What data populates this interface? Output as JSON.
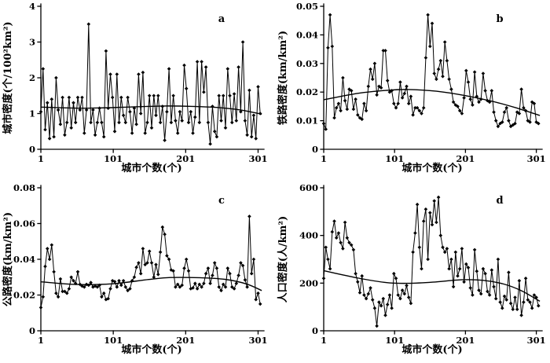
{
  "figure": {
    "background": "#ffffff",
    "line_color": "#000000",
    "marker_shape": "diamond"
  },
  "chart_data": [
    {
      "id": "a",
      "type": "line",
      "panel_label": "a",
      "xlabel": "城市个数(个)",
      "ylabel": "城市密度(个/100²km²)",
      "xlim": [
        1,
        307
      ],
      "ylim": [
        0,
        4
      ],
      "xticks": [
        1,
        101,
        201,
        301
      ],
      "yticks": [
        0,
        1,
        2,
        3,
        4
      ],
      "ytick_labels": [
        "0",
        "1",
        "2",
        "3",
        "4"
      ],
      "x_start": 1,
      "x_step": 3,
      "values": [
        1.05,
        2.25,
        0.55,
        1.3,
        0.3,
        1.4,
        0.35,
        2.0,
        1.1,
        0.7,
        1.45,
        0.4,
        0.75,
        1.45,
        0.6,
        1.3,
        0.75,
        1.45,
        1.1,
        1.45,
        0.45,
        1.1,
        3.5,
        0.75,
        1.1,
        0.4,
        0.75,
        1.15,
        0.75,
        0.35,
        2.75,
        1.15,
        2.1,
        1.45,
        0.5,
        2.1,
        0.75,
        1.45,
        0.95,
        0.75,
        1.45,
        1.05,
        0.45,
        1.15,
        0.7,
        2.1,
        1.0,
        2.15,
        0.45,
        0.75,
        1.5,
        0.6,
        1.5,
        0.95,
        1.5,
        0.75,
        1.2,
        0.25,
        1.05,
        2.25,
        0.75,
        1.5,
        0.8,
        0.45,
        1.05,
        0.8,
        2.35,
        1.7,
        0.75,
        1.05,
        0.45,
        0.9,
        2.45,
        0.75,
        2.45,
        1.6,
        2.3,
        0.75,
        0.15,
        1.2,
        0.5,
        0.35,
        1.5,
        0.8,
        1.5,
        0.6,
        2.25,
        1.5,
        0.75,
        1.55,
        0.8,
        2.3,
        1.05,
        3.0,
        0.8,
        0.4,
        1.65,
        0.35,
        0.95,
        0.3,
        1.75,
        1.0
      ],
      "trend": [
        [
          1,
          1.18
        ],
        [
          60,
          1.15
        ],
        [
          120,
          1.18
        ],
        [
          170,
          1.21
        ],
        [
          210,
          1.2
        ],
        [
          250,
          1.16
        ],
        [
          280,
          1.09
        ],
        [
          306,
          0.98
        ]
      ]
    },
    {
      "id": "b",
      "type": "line",
      "panel_label": "b",
      "xlabel": "城市个数(个)",
      "ylabel": "铁路密度(km/km²)",
      "xlim": [
        1,
        307
      ],
      "ylim": [
        0,
        0.05
      ],
      "xticks": [
        1,
        101,
        201,
        301
      ],
      "yticks": [
        0,
        0.01,
        0.02,
        0.03,
        0.04,
        0.05
      ],
      "ytick_labels": [
        "0",
        "0.01",
        "0.02",
        "0.03",
        "0.04",
        "0.05"
      ],
      "x_start": 1,
      "x_step": 3,
      "values": [
        0.009,
        0.007,
        0.0355,
        0.047,
        0.036,
        0.011,
        0.0145,
        0.016,
        0.0135,
        0.025,
        0.017,
        0.014,
        0.021,
        0.0205,
        0.014,
        0.0175,
        0.012,
        0.011,
        0.0105,
        0.016,
        0.0135,
        0.022,
        0.028,
        0.0245,
        0.03,
        0.019,
        0.022,
        0.0215,
        0.0345,
        0.0345,
        0.024,
        0.02,
        0.0205,
        0.016,
        0.0145,
        0.016,
        0.0235,
        0.018,
        0.0195,
        0.022,
        0.016,
        0.0185,
        0.012,
        0.0145,
        0.0145,
        0.0135,
        0.0125,
        0.0145,
        0.032,
        0.047,
        0.036,
        0.044,
        0.0265,
        0.0245,
        0.028,
        0.031,
        0.0255,
        0.0375,
        0.031,
        0.0245,
        0.021,
        0.0165,
        0.0155,
        0.015,
        0.0135,
        0.0125,
        0.018,
        0.0275,
        0.0235,
        0.0175,
        0.0155,
        0.027,
        0.0185,
        0.0165,
        0.0175,
        0.0265,
        0.0205,
        0.017,
        0.0165,
        0.0205,
        0.013,
        0.01,
        0.008,
        0.009,
        0.0095,
        0.013,
        0.0145,
        0.01,
        0.008,
        0.0085,
        0.009,
        0.013,
        0.0125,
        0.021,
        0.0145,
        0.0135,
        0.01,
        0.0095,
        0.0165,
        0.016,
        0.0095,
        0.009
      ],
      "trend": [
        [
          1,
          0.0173
        ],
        [
          50,
          0.0196
        ],
        [
          90,
          0.0206
        ],
        [
          120,
          0.0209
        ],
        [
          160,
          0.0203
        ],
        [
          200,
          0.0188
        ],
        [
          240,
          0.0167
        ],
        [
          275,
          0.0143
        ],
        [
          306,
          0.0118
        ]
      ]
    },
    {
      "id": "c",
      "type": "line",
      "panel_label": "c",
      "xlabel": "城市个数(个)",
      "ylabel": "公路密度(km/km²)",
      "xlim": [
        1,
        307
      ],
      "ylim": [
        0,
        0.08
      ],
      "xticks": [
        1,
        101,
        201,
        301
      ],
      "yticks": [
        0,
        0.02,
        0.04,
        0.06,
        0.08
      ],
      "ytick_labels": [
        "0",
        "0.02",
        "0.04",
        "0.06",
        "0.08"
      ],
      "x_start": 1,
      "x_step": 3,
      "values": [
        0.013,
        0.019,
        0.036,
        0.046,
        0.04,
        0.048,
        0.033,
        0.021,
        0.019,
        0.029,
        0.022,
        0.022,
        0.021,
        0.0235,
        0.03,
        0.028,
        0.0265,
        0.033,
        0.026,
        0.025,
        0.0245,
        0.026,
        0.0255,
        0.027,
        0.0245,
        0.025,
        0.0245,
        0.0255,
        0.019,
        0.021,
        0.0175,
        0.018,
        0.0235,
        0.028,
        0.0275,
        0.0245,
        0.028,
        0.0255,
        0.028,
        0.0245,
        0.0225,
        0.0235,
        0.028,
        0.03,
        0.0355,
        0.038,
        0.032,
        0.046,
        0.037,
        0.038,
        0.0445,
        0.038,
        0.03,
        0.037,
        0.0315,
        0.044,
        0.058,
        0.054,
        0.042,
        0.04,
        0.034,
        0.0335,
        0.0245,
        0.026,
        0.0245,
        0.0255,
        0.035,
        0.04,
        0.0335,
        0.0235,
        0.024,
        0.0265,
        0.0235,
        0.026,
        0.0245,
        0.0265,
        0.032,
        0.035,
        0.0265,
        0.031,
        0.038,
        0.035,
        0.0245,
        0.0225,
        0.026,
        0.0245,
        0.035,
        0.032,
        0.0245,
        0.0235,
        0.0265,
        0.031,
        0.038,
        0.0365,
        0.0285,
        0.0245,
        0.064,
        0.032,
        0.04,
        0.0175,
        0.021,
        0.015
      ],
      "trend": [
        [
          1,
          0.0274
        ],
        [
          50,
          0.0259
        ],
        [
          100,
          0.0263
        ],
        [
          150,
          0.0287
        ],
        [
          180,
          0.0298
        ],
        [
          220,
          0.0297
        ],
        [
          255,
          0.0288
        ],
        [
          285,
          0.0262
        ],
        [
          306,
          0.0225
        ]
      ]
    },
    {
      "id": "d",
      "type": "line",
      "panel_label": "d",
      "xlabel": "城市个数(个)",
      "ylabel": "人口密度(人/km²)",
      "xlim": [
        1,
        307
      ],
      "ylim": [
        0,
        600
      ],
      "xticks": [
        1,
        101,
        201,
        301
      ],
      "yticks": [
        0,
        200,
        400,
        600
      ],
      "ytick_labels": [
        "0",
        "200",
        "400",
        "600"
      ],
      "x_start": 1,
      "x_step": 3,
      "values": [
        220,
        350,
        300,
        260,
        415,
        460,
        390,
        410,
        370,
        345,
        455,
        390,
        370,
        360,
        340,
        240,
        205,
        160,
        230,
        150,
        135,
        155,
        180,
        130,
        95,
        20,
        120,
        105,
        135,
        65,
        110,
        150,
        95,
        240,
        220,
        150,
        135,
        170,
        155,
        190,
        140,
        115,
        330,
        410,
        530,
        350,
        260,
        460,
        510,
        300,
        495,
        445,
        545,
        455,
        560,
        400,
        350,
        330,
        345,
        260,
        300,
        185,
        330,
        230,
        260,
        345,
        205,
        280,
        265,
        180,
        150,
        340,
        250,
        170,
        155,
        260,
        240,
        165,
        150,
        255,
        185,
        135,
        300,
        120,
        95,
        145,
        130,
        245,
        115,
        90,
        140,
        90,
        210,
        65,
        120,
        220,
        130,
        120,
        95,
        150,
        140,
        105
      ],
      "trend": [
        [
          1,
          252
        ],
        [
          50,
          221
        ],
        [
          90,
          202
        ],
        [
          120,
          199
        ],
        [
          155,
          204
        ],
        [
          195,
          214
        ],
        [
          225,
          212
        ],
        [
          255,
          196
        ],
        [
          280,
          168
        ],
        [
          306,
          124
        ]
      ]
    }
  ]
}
